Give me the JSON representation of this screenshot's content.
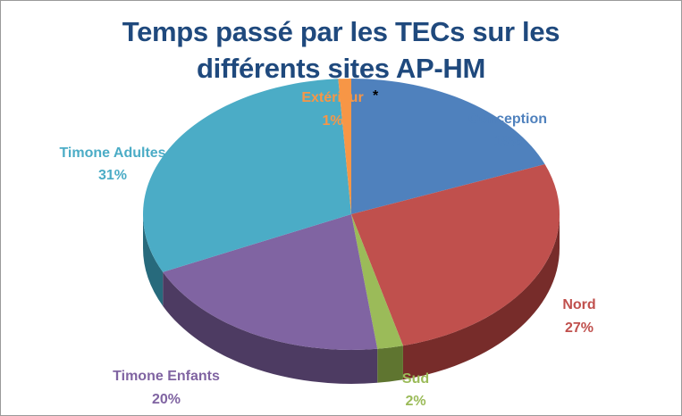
{
  "chart_data": {
    "type": "pie",
    "title_lines": [
      "Temps passé par les TECs sur les",
      "différents sites AP-HM"
    ],
    "slices": [
      {
        "name": "Conception",
        "value": 19,
        "label": "19%",
        "color": "#4f81bd",
        "dark": "#2c4d75"
      },
      {
        "name": "Nord",
        "value": 27,
        "label": "27%",
        "color": "#c0504d",
        "dark": "#772c2a"
      },
      {
        "name": "Sud",
        "value": 2,
        "label": "2%",
        "color": "#9bbb59",
        "dark": "#5f7530"
      },
      {
        "name": "Timone Enfants",
        "value": 20,
        "label": "20%",
        "color": "#8064a2",
        "dark": "#4d3b62"
      },
      {
        "name": "Timone Adultes",
        "value": 31,
        "label": "31%",
        "color": "#4bacc6",
        "dark": "#276a7c"
      },
      {
        "name": "Extérieur",
        "value": 1,
        "label": "1%",
        "color": "#f79646",
        "dark": "#b65708"
      }
    ],
    "annotation": "*"
  }
}
